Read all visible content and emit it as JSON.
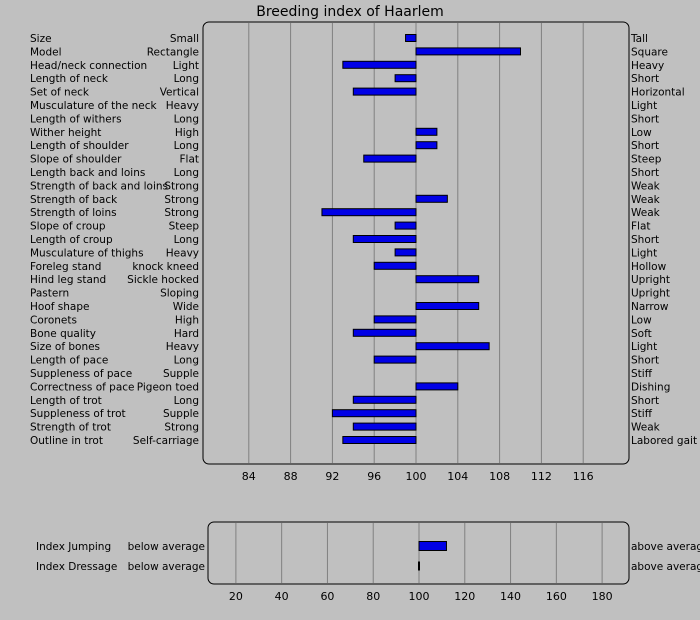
{
  "colors": {
    "background": "#c0c0c0",
    "bar_fill": "#0000e6",
    "bar_stroke": "#000000",
    "grid": "#808080"
  },
  "chart_data": [
    {
      "type": "bar",
      "orientation": "horizontal",
      "title": "Breeding index of Haarlem",
      "baseline": 100,
      "xlim": [
        80,
        120
      ],
      "xticks": [
        84,
        88,
        92,
        96,
        100,
        104,
        108,
        112,
        116
      ],
      "grid": true,
      "rows": [
        {
          "trait": "Size",
          "low": "Small",
          "high": "Tall",
          "value": 99
        },
        {
          "trait": "Model",
          "low": "Rectangle",
          "high": "Square",
          "value": 110
        },
        {
          "trait": "Head/neck connection",
          "low": "Light",
          "high": "Heavy",
          "value": 93
        },
        {
          "trait": "Length of neck",
          "low": "Long",
          "high": "Short",
          "value": 98
        },
        {
          "trait": "Set of neck",
          "low": "Vertical",
          "high": "Horizontal",
          "value": 94
        },
        {
          "trait": "Musculature of the neck",
          "low": "Heavy",
          "high": "Light",
          "value": 100
        },
        {
          "trait": "Length of withers",
          "low": "Long",
          "high": "Short",
          "value": 100
        },
        {
          "trait": "Wither height",
          "low": "High",
          "high": "Low",
          "value": 102
        },
        {
          "trait": "Length of shoulder",
          "low": "Long",
          "high": "Short",
          "value": 102
        },
        {
          "trait": "Slope of shoulder",
          "low": "Flat",
          "high": "Steep",
          "value": 95
        },
        {
          "trait": "Length back and loins",
          "low": "Long",
          "high": "Short",
          "value": 100
        },
        {
          "trait": "Strength of back and loins",
          "low": "Strong",
          "high": "Weak",
          "value": 100
        },
        {
          "trait": "Strength of back",
          "low": "Strong",
          "high": "Weak",
          "value": 103
        },
        {
          "trait": "Strength of loins",
          "low": "Strong",
          "high": "Weak",
          "value": 91
        },
        {
          "trait": "Slope of croup",
          "low": "Steep",
          "high": "Flat",
          "value": 98
        },
        {
          "trait": "Length of croup",
          "low": "Long",
          "high": "Short",
          "value": 94
        },
        {
          "trait": "Musculature of thighs",
          "low": "Heavy",
          "high": "Light",
          "value": 98
        },
        {
          "trait": "Foreleg stand",
          "low": "knock kneed",
          "high": "Hollow",
          "value": 96
        },
        {
          "trait": "Hind leg stand",
          "low": "Sickle hocked",
          "high": "Upright",
          "value": 106
        },
        {
          "trait": "Pastern",
          "low": "Sloping",
          "high": "Upright",
          "value": 100
        },
        {
          "trait": "Hoof shape",
          "low": "Wide",
          "high": "Narrow",
          "value": 106
        },
        {
          "trait": "Coronets",
          "low": "High",
          "high": "Low",
          "value": 96
        },
        {
          "trait": "Bone quality",
          "low": "Hard",
          "high": "Soft",
          "value": 94
        },
        {
          "trait": "Size of bones",
          "low": "Heavy",
          "high": "Light",
          "value": 107
        },
        {
          "trait": "Length of pace",
          "low": "Long",
          "high": "Short",
          "value": 96
        },
        {
          "trait": "Suppleness of pace",
          "low": "Supple",
          "high": "Stiff",
          "value": 100
        },
        {
          "trait": "Correctness of pace",
          "low": "Pigeon toed",
          "high": "Dishing",
          "value": 104
        },
        {
          "trait": "Length of trot",
          "low": "Long",
          "high": "Short",
          "value": 94
        },
        {
          "trait": "Suppleness of trot",
          "low": "Supple",
          "high": "Stiff",
          "value": 92
        },
        {
          "trait": "Strength of trot",
          "low": "Strong",
          "high": "Weak",
          "value": 94
        },
        {
          "trait": "Outline in trot",
          "low": "Self-carriage",
          "high": "Labored gait",
          "value": 93
        }
      ]
    },
    {
      "type": "bar",
      "orientation": "horizontal",
      "title": "",
      "baseline": 100,
      "xlim": [
        10,
        190
      ],
      "xticks": [
        20,
        40,
        60,
        80,
        100,
        120,
        140,
        160,
        180
      ],
      "grid": true,
      "rows": [
        {
          "trait": "Index Jumping",
          "low": "below average",
          "high": "above average",
          "value": 112
        },
        {
          "trait": "Index Dressage",
          "low": "below average",
          "high": "above average",
          "value": 100
        }
      ]
    }
  ]
}
